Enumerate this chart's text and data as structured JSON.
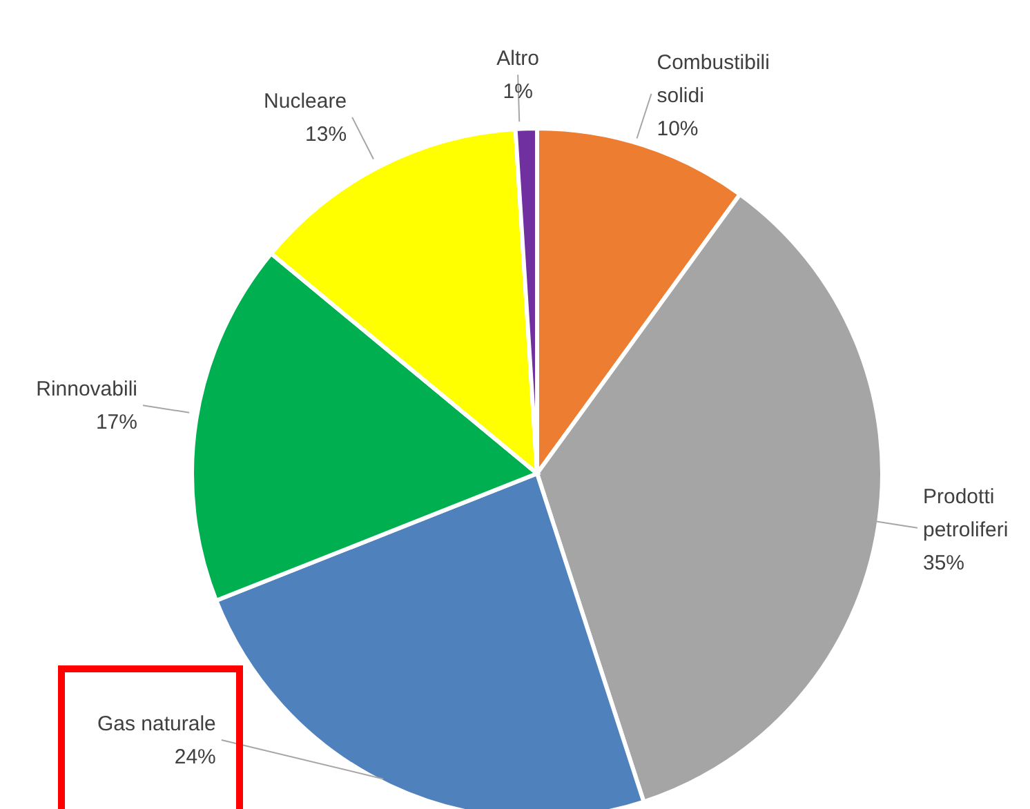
{
  "chart_data": {
    "type": "pie",
    "categories": [
      "Combustibili solidi",
      "Prodotti petroliferi",
      "Gas naturale",
      "Rinnovabili",
      "Nucleare",
      "Altro"
    ],
    "values": [
      10,
      35,
      24,
      17,
      13,
      1
    ],
    "value_labels": [
      "10%",
      "35%",
      "24%",
      "17%",
      "13%",
      "1%"
    ],
    "colors": [
      "#ed7d31",
      "#a5a5a5",
      "#4f81bd",
      "#00b050",
      "#ffff00",
      "#7030a0"
    ]
  }
}
